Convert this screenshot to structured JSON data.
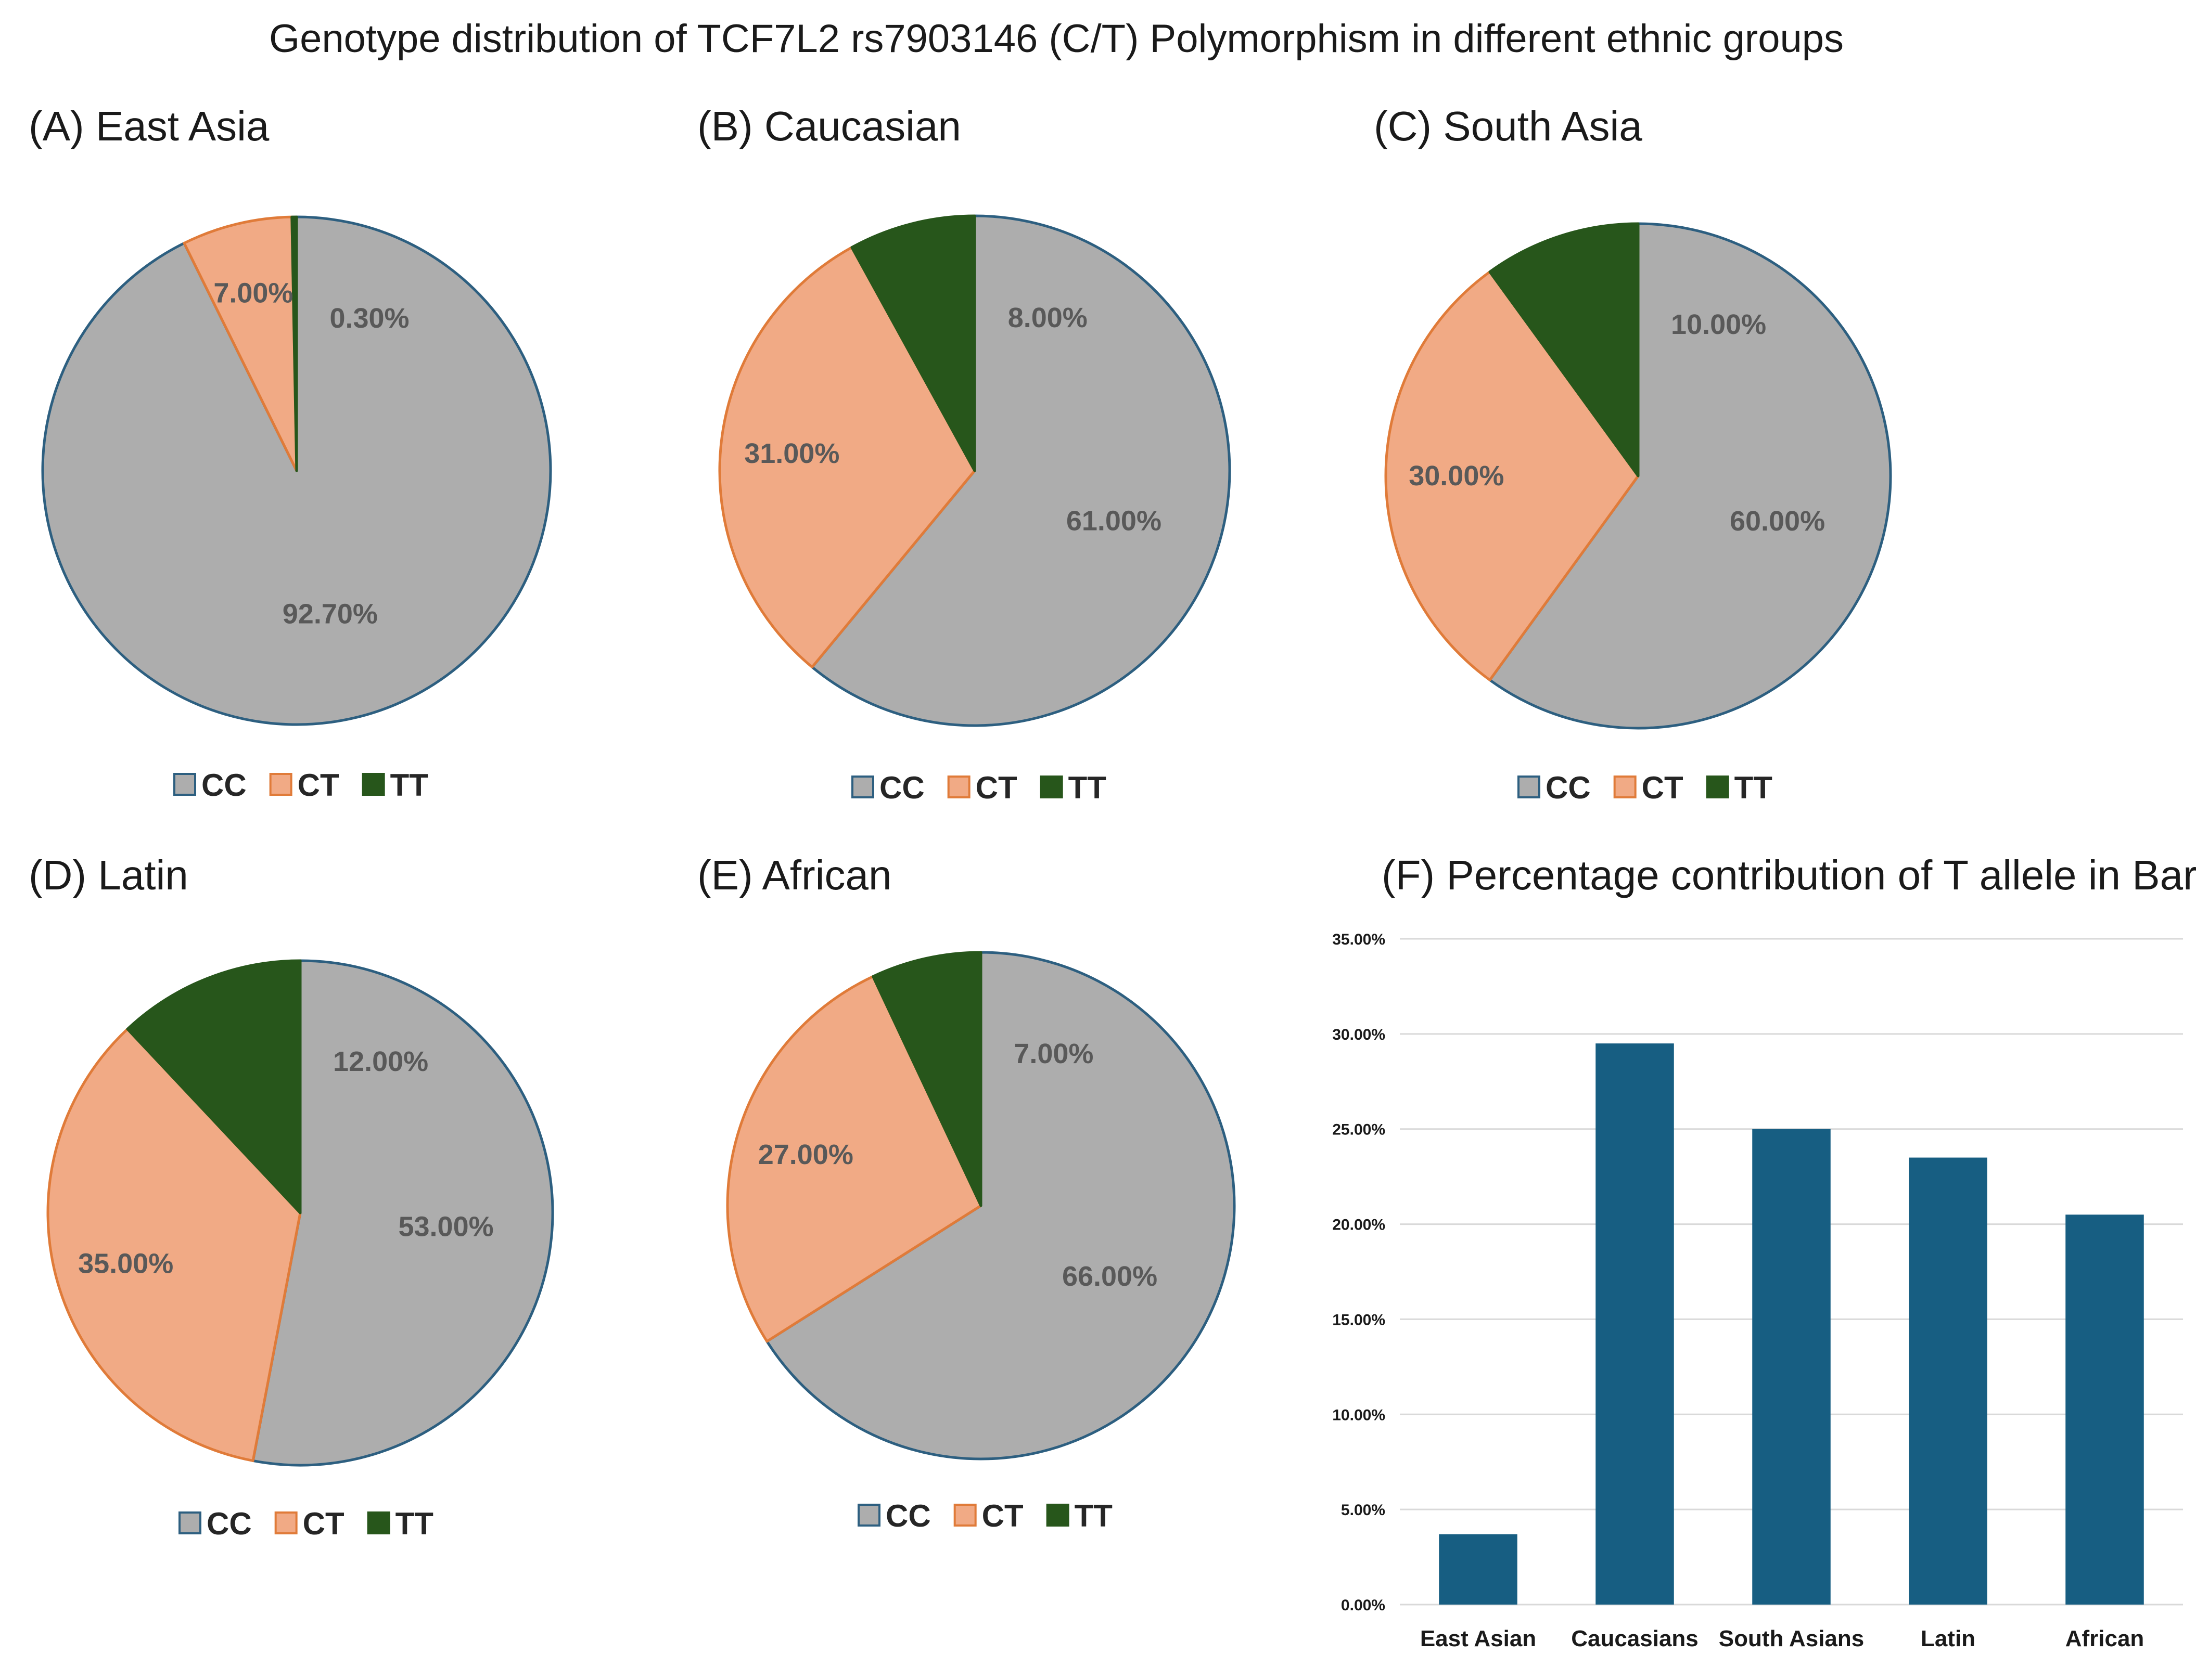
{
  "title": "Genotype distribution of TCF7L2 rs7903146 (C/T) Polymorphism in different ethnic groups",
  "colors": {
    "CC": "#adadad",
    "CT": "#f1aa85",
    "TT": "#27561b",
    "CC_edge": "#2d5f80",
    "CT_edge": "#e07b39",
    "bar": "#175e82"
  },
  "chart_data": [
    {
      "type": "pie",
      "title": "(A) East Asia",
      "legend": [
        "CC",
        "CT",
        "TT"
      ],
      "slices": [
        {
          "name": "CC",
          "value": 92.7,
          "label": "92.70%"
        },
        {
          "name": "CT",
          "value": 7.0,
          "label": "7.00%"
        },
        {
          "name": "TT",
          "value": 0.3,
          "label": "0.30%"
        }
      ]
    },
    {
      "type": "pie",
      "title": "(B) Caucasian",
      "legend": [
        "CC",
        "CT",
        "TT"
      ],
      "slices": [
        {
          "name": "CC",
          "value": 61.0,
          "label": "61.00%"
        },
        {
          "name": "CT",
          "value": 31.0,
          "label": "31.00%"
        },
        {
          "name": "TT",
          "value": 8.0,
          "label": "8.00%"
        }
      ]
    },
    {
      "type": "pie",
      "title": "(C) South Asia",
      "legend": [
        "CC",
        "CT",
        "TT"
      ],
      "slices": [
        {
          "name": "CC",
          "value": 60.0,
          "label": "60.00%"
        },
        {
          "name": "CT",
          "value": 30.0,
          "label": "30.00%"
        },
        {
          "name": "TT",
          "value": 10.0,
          "label": "10.00%"
        }
      ]
    },
    {
      "type": "pie",
      "title": "(D) Latin",
      "legend": [
        "CC",
        "CT",
        "TT"
      ],
      "slices": [
        {
          "name": "CC",
          "value": 53.0,
          "label": "53.00%"
        },
        {
          "name": "CT",
          "value": 35.0,
          "label": "35.00%"
        },
        {
          "name": "TT",
          "value": 12.0,
          "label": "12.00%"
        }
      ]
    },
    {
      "type": "pie",
      "title": "(E) African",
      "legend": [
        "CC",
        "CT",
        "TT"
      ],
      "slices": [
        {
          "name": "CC",
          "value": 66.0,
          "label": "66.00%"
        },
        {
          "name": "CT",
          "value": 27.0,
          "label": "27.00%"
        },
        {
          "name": "TT",
          "value": 7.0,
          "label": "7.00%"
        }
      ]
    },
    {
      "type": "bar",
      "title": "(F) Percentage contribution of T allele in Bar",
      "categories": [
        "East Asian",
        "Caucasians",
        "South Asians",
        "Latin",
        "African"
      ],
      "values": [
        3.7,
        29.5,
        25.0,
        23.5,
        20.5
      ],
      "ylim": [
        0,
        35
      ],
      "yticks": [
        "0.00%",
        "5.00%",
        "10.00%",
        "15.00%",
        "20.00%",
        "25.00%",
        "30.00%",
        "35.00%"
      ],
      "grid": true
    }
  ]
}
